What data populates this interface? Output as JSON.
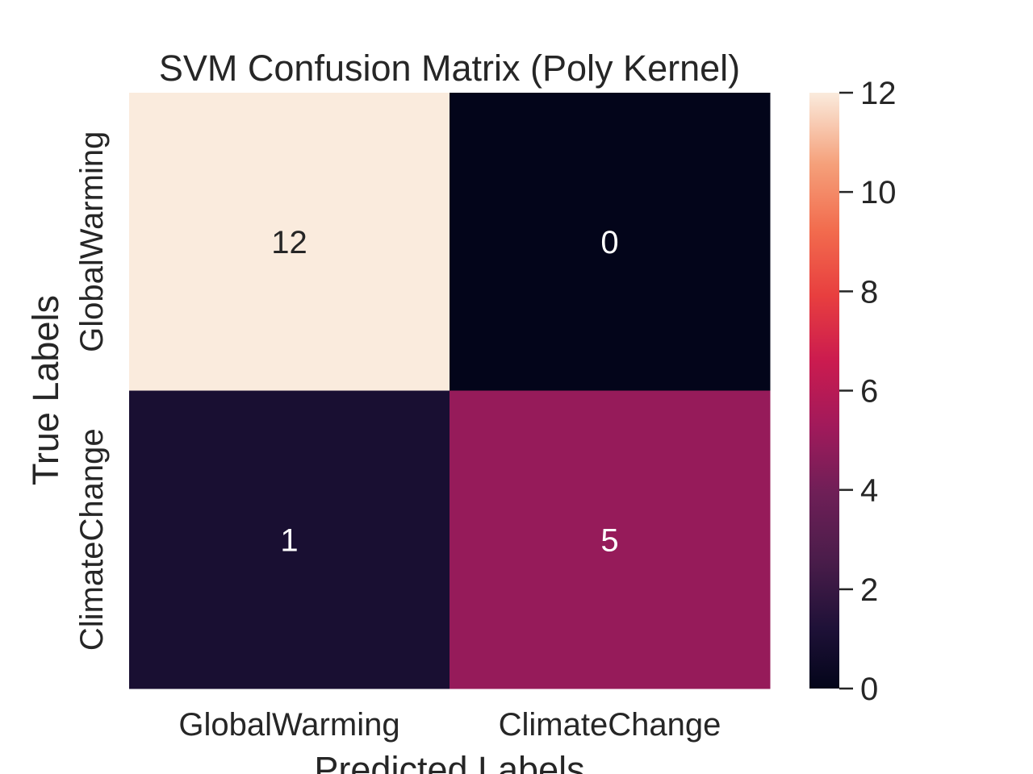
{
  "chart_data": {
    "type": "heatmap",
    "title": "SVM Confusion Matrix (Poly Kernel)",
    "xlabel": "Predicted Labels",
    "ylabel": "True Labels",
    "x_categories": [
      "GlobalWarming",
      "ClimateChange"
    ],
    "y_categories": [
      "GlobalWarming",
      "ClimateChange"
    ],
    "values": [
      [
        12,
        0
      ],
      [
        1,
        5
      ]
    ],
    "colorbar": {
      "range": [
        0,
        12
      ],
      "ticks": [
        0,
        2,
        4,
        6,
        8,
        10,
        12
      ],
      "colormap": "rocket"
    },
    "grid": false,
    "legend": "colorbar-right"
  }
}
